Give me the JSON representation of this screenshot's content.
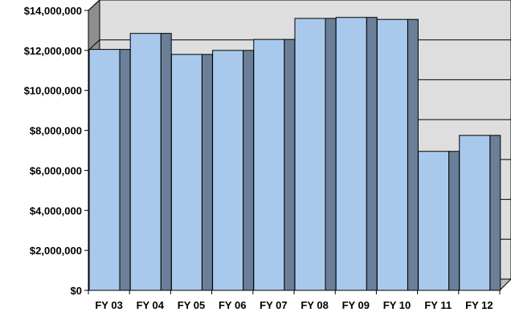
{
  "colors": {
    "background": "#ffffff",
    "plot_area": "#dedede",
    "bar_face": "#a9c9ec",
    "bar_side": "#6b7f99",
    "side_wall": "#8e8e8e",
    "outline": "#000000"
  },
  "chart_data": {
    "type": "bar",
    "style": "3d-clustered-column",
    "categories": [
      "FY 03",
      "FY 04",
      "FY 05",
      "FY 06",
      "FY 07",
      "FY 08",
      "FY 09",
      "FY 10",
      "FY 11",
      "FY 12"
    ],
    "series": [
      {
        "values": [
          12050000,
          12850000,
          11800000,
          12000000,
          12550000,
          13600000,
          13650000,
          13550000,
          6950000,
          7750000
        ]
      }
    ],
    "ylim": [
      0,
      14000000
    ],
    "yticks": [
      0,
      2000000,
      4000000,
      6000000,
      8000000,
      10000000,
      12000000,
      14000000
    ],
    "ytick_labels": [
      "$0",
      "$2,000,000",
      "$4,000,000",
      "$6,000,000",
      "$8,000,000",
      "$10,000,000",
      "$12,000,000",
      "$14,000,000"
    ],
    "grid": true,
    "legend": "none",
    "title": "",
    "xlabel": "",
    "ylabel": ""
  }
}
